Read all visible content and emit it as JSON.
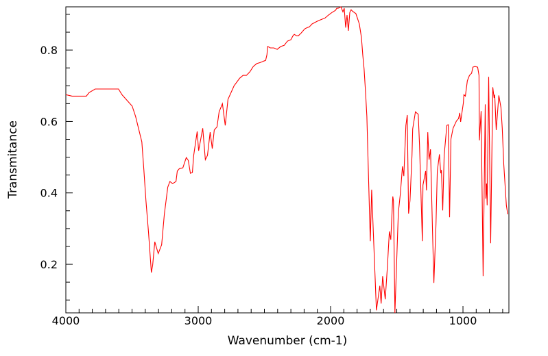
{
  "chart_data": {
    "type": "line",
    "title": "",
    "xlabel": "Wavenumber (cm-1)",
    "ylabel": "Transmitance",
    "xlim": [
      4000,
      653
    ],
    "ylim": [
      0.064,
      0.921
    ],
    "x_reversed": true,
    "grid": false,
    "xticks": [
      4000,
      3000,
      2000,
      1000
    ],
    "xtick_labels": [
      "4000",
      "3000",
      "2000",
      "1000"
    ],
    "xminor_step": 100,
    "yticks": [
      0.2,
      0.4,
      0.6,
      0.8
    ],
    "ytick_labels": [
      "0.2",
      "0.4",
      "0.6",
      "0.8"
    ],
    "yminor_step": 0.05,
    "series": [
      {
        "name": "spectrum",
        "color": "#ff0000",
        "x": [
          4000,
          3953,
          3845,
          3824,
          3778,
          3602,
          3576,
          3499,
          3473,
          3426,
          3411,
          3395,
          3375,
          3354,
          3344,
          3328,
          3302,
          3276,
          3256,
          3230,
          3214,
          3194,
          3168,
          3158,
          3142,
          3116,
          3090,
          3075,
          3059,
          3044,
          3034,
          3008,
          2997,
          2966,
          2946,
          2930,
          2910,
          2894,
          2879,
          2858,
          2842,
          2817,
          2796,
          2775,
          2729,
          2687,
          2661,
          2636,
          2610,
          2584,
          2558,
          2532,
          2506,
          2491,
          2481,
          2475,
          2455,
          2429,
          2403,
          2377,
          2351,
          2326,
          2300,
          2284,
          2274,
          2258,
          2243,
          2222,
          2196,
          2176,
          2160,
          2140,
          2119,
          2093,
          2067,
          2041,
          2016,
          1990,
          1964,
          1953,
          1943,
          1922,
          1907,
          1897,
          1886,
          1876,
          1866,
          1855,
          1845,
          1835,
          1809,
          1783,
          1767,
          1757,
          1747,
          1736,
          1726,
          1716,
          1700,
          1690,
          1654,
          1628,
          1618,
          1607,
          1587,
          1571,
          1556,
          1545,
          1530,
          1525,
          1514,
          1488,
          1473,
          1457,
          1447,
          1431,
          1421,
          1411,
          1400,
          1385,
          1380,
          1359,
          1338,
          1328,
          1307,
          1302,
          1282,
          1276,
          1266,
          1256,
          1245,
          1230,
          1220,
          1204,
          1194,
          1178,
          1168,
          1163,
          1153,
          1142,
          1122,
          1111,
          1101,
          1091,
          1075,
          1050,
          1034,
          1024,
          1018,
          997,
          993,
          982,
          967,
          951,
          935,
          925,
          910,
          889,
          879,
          876,
          863,
          848,
          832,
          827,
          822,
          817,
          806,
          791,
          775,
          765,
          760,
          749,
          729,
          713,
          703,
          692,
          672,
          662
        ],
        "y": [
          0.675,
          0.671,
          0.671,
          0.681,
          0.691,
          0.691,
          0.675,
          0.643,
          0.614,
          0.543,
          0.466,
          0.378,
          0.288,
          0.177,
          0.198,
          0.263,
          0.23,
          0.255,
          0.34,
          0.416,
          0.432,
          0.426,
          0.432,
          0.461,
          0.468,
          0.47,
          0.499,
          0.491,
          0.455,
          0.457,
          0.505,
          0.572,
          0.518,
          0.581,
          0.493,
          0.505,
          0.57,
          0.524,
          0.576,
          0.585,
          0.627,
          0.65,
          0.589,
          0.662,
          0.7,
          0.721,
          0.729,
          0.729,
          0.739,
          0.754,
          0.762,
          0.765,
          0.769,
          0.771,
          0.787,
          0.81,
          0.806,
          0.806,
          0.802,
          0.81,
          0.813,
          0.825,
          0.829,
          0.84,
          0.844,
          0.84,
          0.84,
          0.848,
          0.859,
          0.863,
          0.865,
          0.873,
          0.877,
          0.882,
          0.886,
          0.89,
          0.898,
          0.905,
          0.911,
          0.917,
          0.917,
          0.921,
          0.907,
          0.917,
          0.863,
          0.898,
          0.854,
          0.905,
          0.913,
          0.909,
          0.902,
          0.873,
          0.835,
          0.787,
          0.748,
          0.681,
          0.614,
          0.48,
          0.265,
          0.409,
          0.071,
          0.14,
          0.09,
          0.167,
          0.102,
          0.192,
          0.292,
          0.269,
          0.39,
          0.378,
          0.064,
          0.345,
          0.397,
          0.474,
          0.447,
          0.589,
          0.618,
          0.342,
          0.378,
          0.505,
          0.579,
          0.627,
          0.62,
          0.533,
          0.265,
          0.422,
          0.461,
          0.407,
          0.57,
          0.493,
          0.522,
          0.294,
          0.148,
          0.313,
          0.461,
          0.508,
          0.455,
          0.464,
          0.351,
          0.505,
          0.589,
          0.591,
          0.332,
          0.551,
          0.581,
          0.601,
          0.608,
          0.624,
          0.599,
          0.652,
          0.675,
          0.671,
          0.714,
          0.729,
          0.735,
          0.752,
          0.754,
          0.752,
          0.729,
          0.547,
          0.629,
          0.167,
          0.648,
          0.384,
          0.426,
          0.365,
          0.725,
          0.259,
          0.696,
          0.666,
          0.675,
          0.576,
          0.673,
          0.639,
          0.581,
          0.48,
          0.365,
          0.34
        ]
      }
    ]
  }
}
